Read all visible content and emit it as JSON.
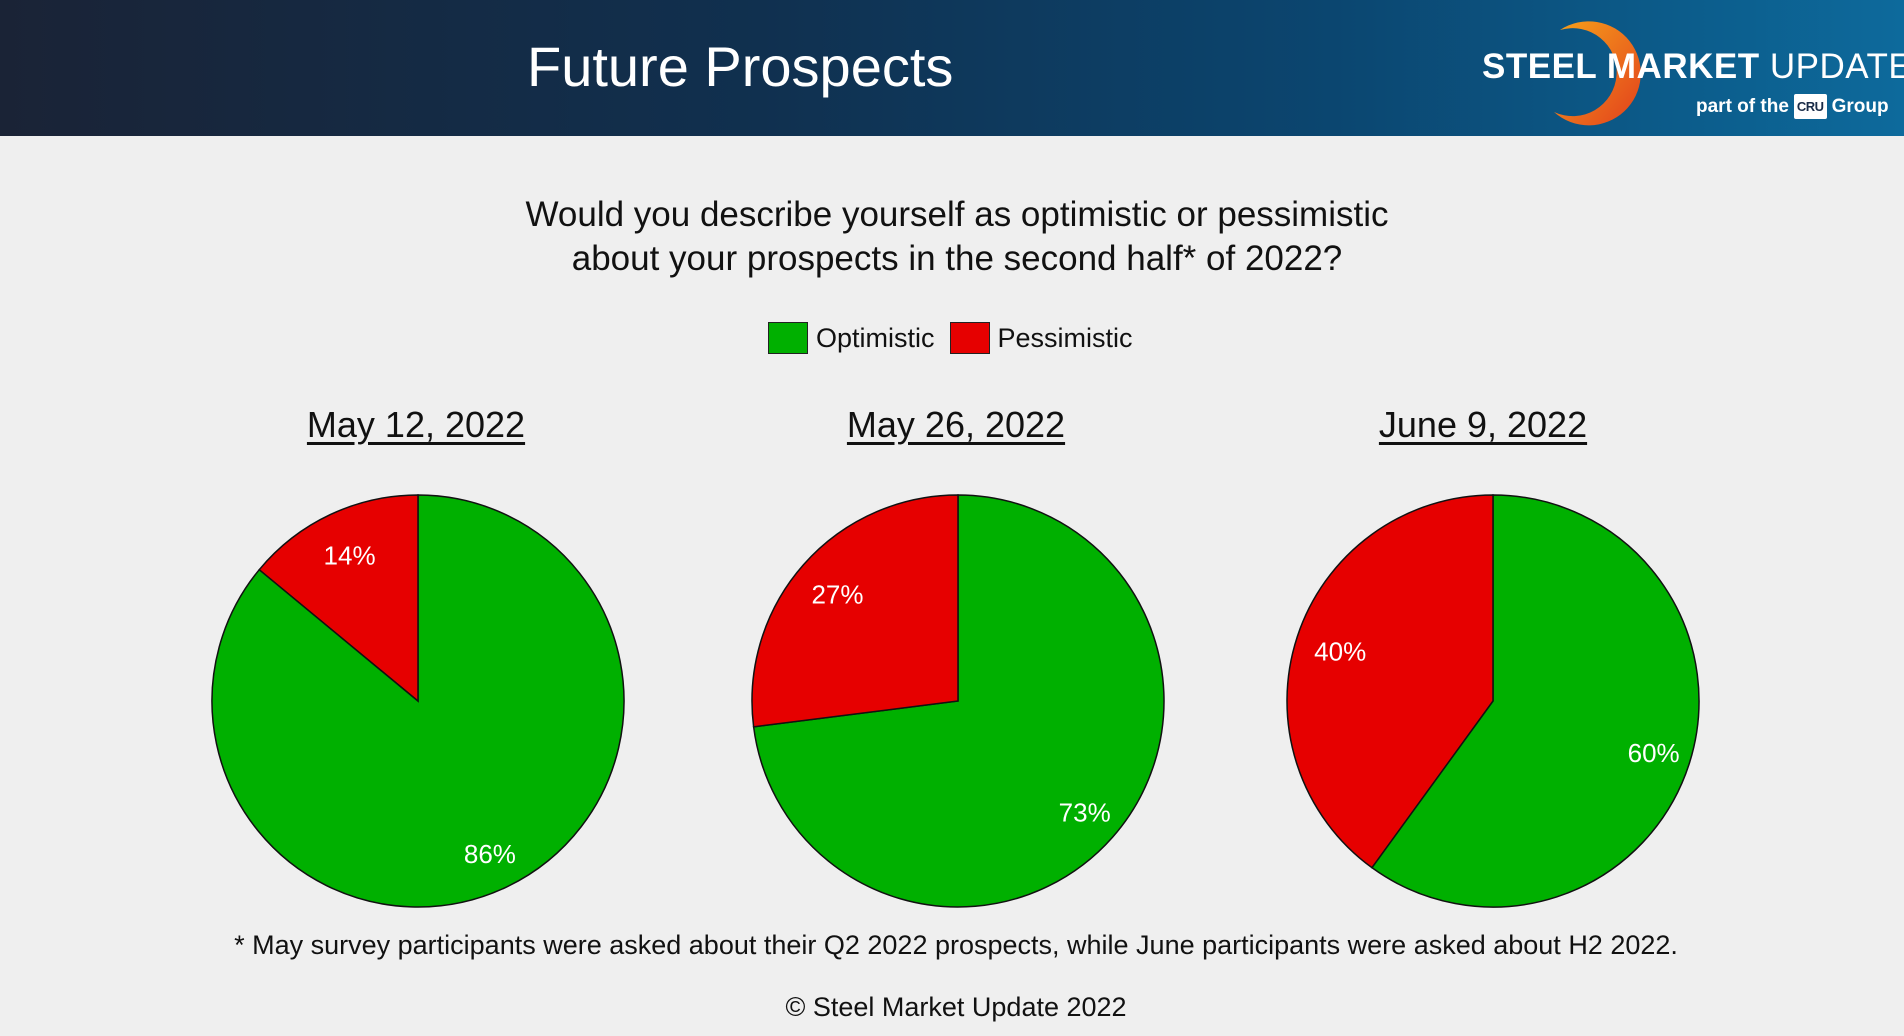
{
  "header": {
    "title": "Future Prospects",
    "brand_bold": "STEEL MARKET",
    "brand_rest": "UPDATE",
    "brand_sub_pre": "part of the",
    "brand_sub_logo": "CRU",
    "brand_sub_post": "Group"
  },
  "question": {
    "line1": "Would you describe yourself as optimistic or pessimistic",
    "line2": "about your prospects in the second half* of 2022?"
  },
  "colors": {
    "optimistic": "#00b000",
    "pessimistic": "#e60000"
  },
  "chart_data": [
    {
      "type": "pie",
      "title": "May 12, 2022",
      "labels": [
        "Optimistic",
        "Pessimistic"
      ],
      "values": [
        86,
        14
      ],
      "data_labels": [
        "86%",
        "14%"
      ]
    },
    {
      "type": "pie",
      "title": "May 26, 2022",
      "labels": [
        "Optimistic",
        "Pessimistic"
      ],
      "values": [
        73,
        27
      ],
      "data_labels": [
        "73%",
        "27%"
      ]
    },
    {
      "type": "pie",
      "title": "June 9, 2022",
      "labels": [
        "Optimistic",
        "Pessimistic"
      ],
      "values": [
        60,
        40
      ],
      "data_labels": [
        "60%",
        "40%"
      ]
    }
  ],
  "legend": [
    {
      "label": "Optimistic"
    },
    {
      "label": "Pessimistic"
    }
  ],
  "footnote": "* May survey participants were asked about their Q2 2022 prospects, while June participants were asked about H2 2022.",
  "copyright": "© Steel Market Update 2022"
}
